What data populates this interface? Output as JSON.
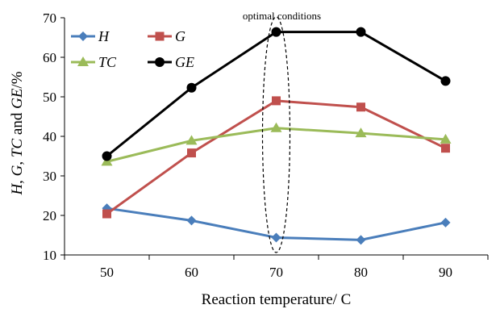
{
  "chart_data": {
    "type": "line",
    "x": [
      50,
      60,
      70,
      80,
      90
    ],
    "series": [
      {
        "name": "H",
        "color": "#4a7ebb",
        "marker": "diamond",
        "values": [
          21.8,
          18.7,
          14.4,
          13.8,
          18.2
        ]
      },
      {
        "name": "G",
        "color": "#c0504d",
        "marker": "square",
        "values": [
          20.4,
          35.8,
          49.0,
          47.4,
          37.0
        ]
      },
      {
        "name": "TC",
        "color": "#9bbb59",
        "marker": "triangle",
        "values": [
          33.6,
          38.9,
          42.1,
          40.8,
          39.2
        ]
      },
      {
        "name": "GE",
        "color": "#000000",
        "marker": "circle",
        "values": [
          35.0,
          52.3,
          66.4,
          66.4,
          54.0
        ]
      }
    ],
    "title": "",
    "xlabel": "Reaction temperature/ C",
    "ylabel_parts": [
      "H",
      ", ",
      "G",
      ", ",
      "TC",
      " and ",
      "GE",
      "/%"
    ],
    "ylim": [
      10,
      70
    ],
    "yticks": [
      10,
      20,
      30,
      40,
      50,
      60,
      70
    ],
    "xticks": [
      "50",
      "60",
      "70",
      "80",
      "90"
    ],
    "grid": false,
    "legend": "top-left",
    "annotation": {
      "text": "optimal conditions",
      "x": 70
    }
  }
}
